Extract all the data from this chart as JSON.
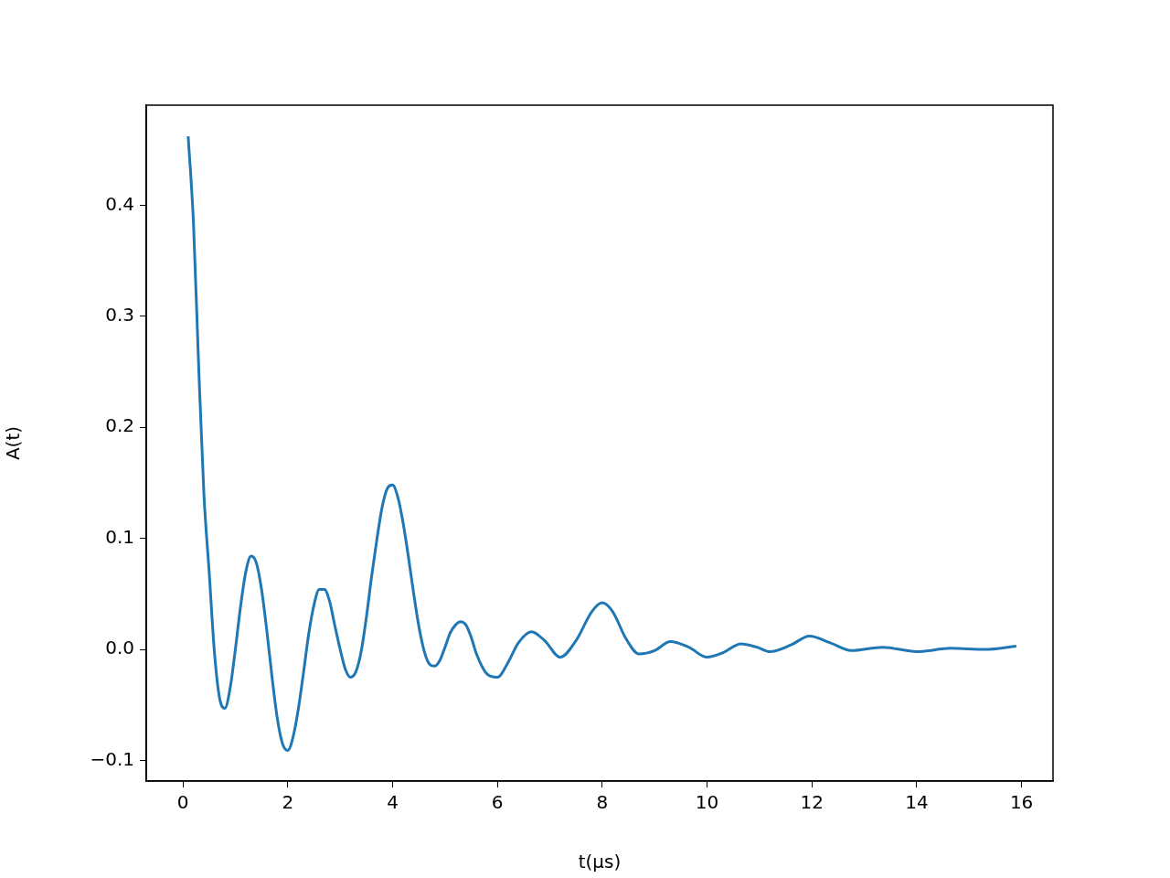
{
  "chart_data": {
    "type": "line",
    "xlabel": "t(μs)",
    "ylabel": "A(t)",
    "xlim": [
      -0.7,
      16.6
    ],
    "ylim": [
      -0.1185,
      0.49
    ],
    "xticks": [
      0,
      2,
      4,
      6,
      8,
      10,
      12,
      14,
      16
    ],
    "yticks": [
      {
        "value": -0.1,
        "label": "−0.1"
      },
      {
        "value": 0,
        "label": "0.0"
      },
      {
        "value": 0.1,
        "label": "0.1"
      },
      {
        "value": 0.2,
        "label": "0.2"
      },
      {
        "value": 0.3,
        "label": "0.3"
      },
      {
        "value": 0.4,
        "label": "0.4"
      }
    ],
    "grid": false,
    "legend": false,
    "marker": "none",
    "line_style": "solid",
    "series": [
      {
        "color": "#1f77b4",
        "x": [
          0.1,
          0.2,
          0.3,
          0.4,
          0.5,
          0.6,
          0.7,
          0.8,
          0.9,
          1.0,
          1.1,
          1.2,
          1.3,
          1.4,
          1.5,
          1.6,
          1.7,
          1.8,
          1.9,
          2.0,
          2.1,
          2.2,
          2.3,
          2.4,
          2.5,
          2.6,
          2.7,
          2.8,
          2.9,
          3.0,
          3.1,
          3.2,
          3.3,
          3.4,
          3.5,
          3.6,
          3.7,
          3.8,
          3.9,
          4.0,
          4.1,
          4.2,
          4.3,
          4.4,
          4.5,
          4.6,
          4.7,
          4.8,
          4.9,
          5.0,
          5.1,
          5.2,
          5.3,
          5.4,
          5.5,
          5.6,
          5.8,
          6.0,
          6.2,
          6.4,
          6.65,
          6.9,
          7.2,
          7.5,
          7.8,
          8.0,
          8.2,
          8.45,
          8.7,
          9.0,
          9.3,
          9.65,
          10.0,
          10.3,
          10.65,
          10.95,
          11.2,
          11.6,
          11.95,
          12.35,
          12.75,
          13.35,
          14.0,
          14.65,
          15.3,
          15.9
        ],
        "values": [
          0.462,
          0.385,
          0.255,
          0.14,
          0.07,
          -0.002,
          -0.044,
          -0.053,
          -0.035,
          0.0,
          0.039,
          0.07,
          0.084,
          0.078,
          0.054,
          0.017,
          -0.025,
          -0.062,
          -0.085,
          -0.091,
          -0.079,
          -0.054,
          -0.021,
          0.014,
          0.04,
          0.054,
          0.054,
          0.043,
          0.021,
          0.0,
          -0.018,
          -0.025,
          -0.02,
          -0.002,
          0.029,
          0.066,
          0.099,
          0.128,
          0.145,
          0.148,
          0.137,
          0.114,
          0.084,
          0.051,
          0.021,
          -0.001,
          -0.013,
          -0.015,
          -0.01,
          0.002,
          0.015,
          0.022,
          0.025,
          0.022,
          0.011,
          -0.004,
          -0.022,
          -0.025,
          -0.012,
          0.006,
          0.016,
          0.008,
          -0.007,
          0.008,
          0.034,
          0.042,
          0.034,
          0.01,
          -0.004,
          -0.001,
          0.007,
          0.002,
          -0.007,
          -0.003,
          0.005,
          0.002,
          -0.002,
          0.004,
          0.012,
          0.006,
          -0.001,
          0.002,
          -0.002,
          0.001,
          0.0,
          0.003
        ]
      }
    ]
  }
}
